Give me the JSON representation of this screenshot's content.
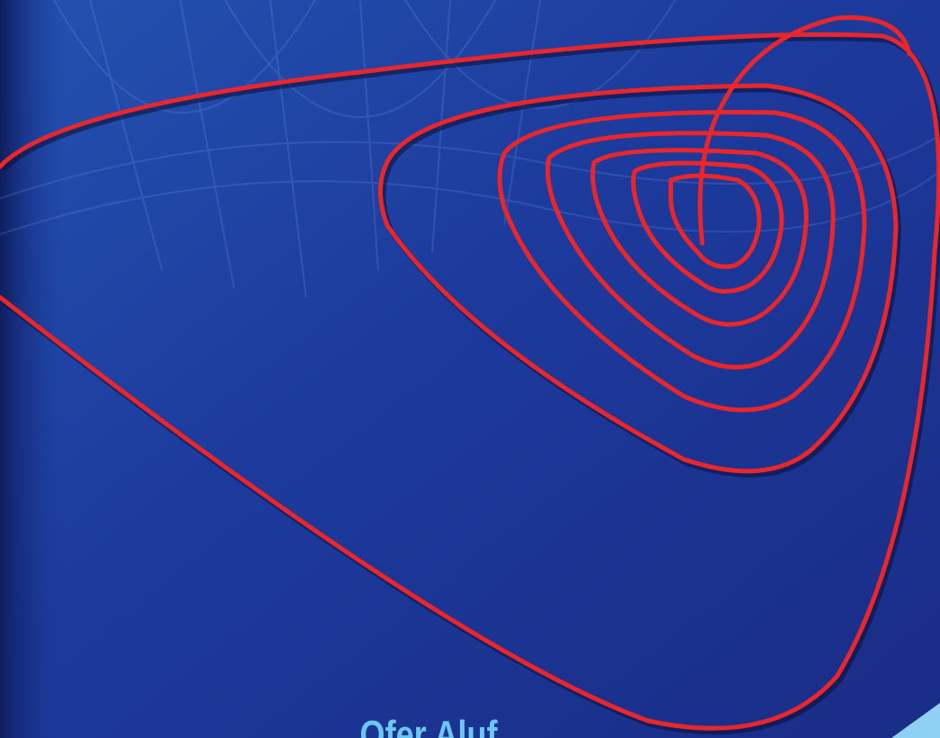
{
  "cover": {
    "author": "Ofer Aluf"
  }
}
